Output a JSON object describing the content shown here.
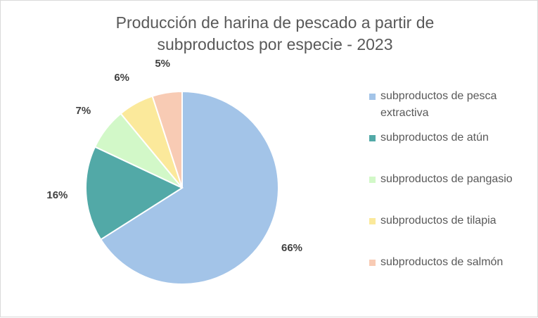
{
  "chart_data": {
    "type": "pie",
    "title_lines": [
      "Producción de harina de pescado a partir de",
      "subproductos por especie - 2023"
    ],
    "slices": [
      {
        "label": "subproductos de pesca extractiva",
        "value": 66,
        "display": "66%",
        "color": "#a3c4e8"
      },
      {
        "label": "subproductos de atún",
        "value": 16,
        "display": "16%",
        "color": "#52a9a7"
      },
      {
        "label": "subproductos de pangasio",
        "value": 7,
        "display": "7%",
        "color": "#d2f8c8"
      },
      {
        "label": "subproductos de tilapia",
        "value": 6,
        "display": "6%",
        "color": "#fbe99b"
      },
      {
        "label": "subproductos de salmón",
        "value": 5,
        "display": "5%",
        "color": "#f8cbb4"
      }
    ],
    "legend_position": "right",
    "start_angle": "12 o'clock",
    "direction": "clockwise"
  }
}
